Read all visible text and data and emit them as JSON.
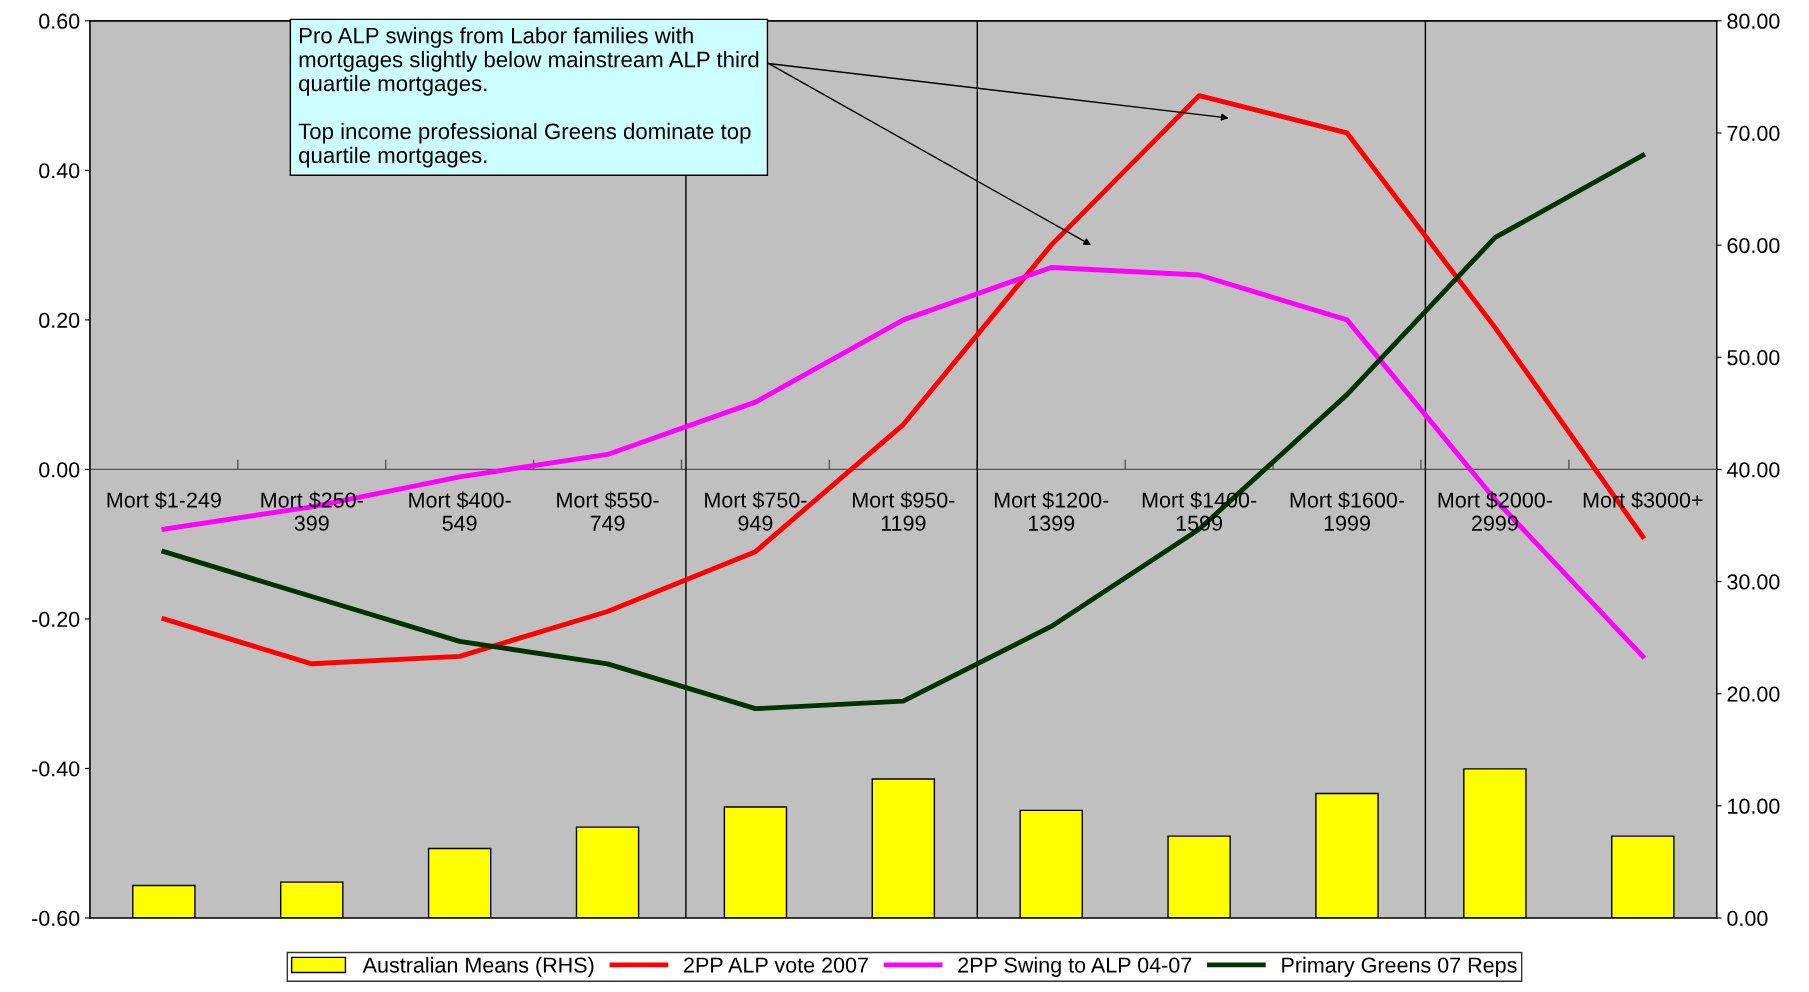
{
  "chart_data": {
    "type": "line",
    "categories": [
      "Mort $1-249",
      "Mort $250-\n399",
      "Mort $400-\n549",
      "Mort $550-\n749",
      "Mort $750-\n949",
      "Mort $950-\n1199",
      "Mort $1200-\n1399",
      "Mort $1400-\n1599",
      "Mort $1600-\n1999",
      "Mort $2000-\n2999",
      "Mort $3000+"
    ],
    "series": [
      {
        "name": "Australian Means (RHS)",
        "type": "bar",
        "axis": "y2",
        "color": "#ffff00",
        "values": [
          2.9,
          3.2,
          6.2,
          8.1,
          9.9,
          12.4,
          9.6,
          7.3,
          11.1,
          13.3,
          7.3
        ]
      },
      {
        "name": "2PP ALP vote 2007",
        "color": "#ff0000",
        "values": [
          -0.2,
          -0.26,
          -0.25,
          -0.19,
          -0.11,
          0.06,
          0.3,
          0.5,
          0.45,
          0.19,
          -0.09
        ]
      },
      {
        "name": "2PP Swing to ALP 04-07",
        "color": "#ff00ff",
        "values": [
          -0.08,
          -0.05,
          -0.01,
          0.02,
          0.09,
          0.2,
          0.27,
          0.26,
          0.2,
          -0.04,
          -0.25
        ]
      },
      {
        "name": "Primary Greens 07 Reps",
        "color": "#003300",
        "values": [
          -0.11,
          -0.17,
          -0.23,
          -0.26,
          -0.32,
          -0.31,
          -0.21,
          -0.08,
          0.1,
          0.31,
          0.42
        ]
      }
    ],
    "ylim": [
      -0.6,
      0.6
    ],
    "yticks": [
      {
        "value": -0.6,
        "label": "-0.60"
      },
      {
        "value": -0.4,
        "label": "-0.40"
      },
      {
        "value": -0.2,
        "label": "-0.20"
      },
      {
        "value": 0,
        "label": "0.00"
      },
      {
        "value": 0.2,
        "label": "0.20"
      },
      {
        "value": 0.4,
        "label": "0.40"
      },
      {
        "value": 0.6,
        "label": "0.60"
      }
    ],
    "y2lim": [
      0,
      80
    ],
    "y2ticks": [
      {
        "value": 0,
        "label": "0.00"
      },
      {
        "value": 10,
        "label": "10.00"
      },
      {
        "value": 20,
        "label": "20.00"
      },
      {
        "value": 30,
        "label": "30.00"
      },
      {
        "value": 40,
        "label": "40.00"
      },
      {
        "value": 50,
        "label": "50.00"
      },
      {
        "value": 60,
        "label": "60.00"
      },
      {
        "value": 70,
        "label": "70.00"
      },
      {
        "value": 80,
        "label": "80.00"
      }
    ],
    "annotations": [
      "Pro ALP swings from Labor families with\nmortgages slightly below mainstream ALP third\nquartile mortgages.\n\nTop income professional Greens dominate top\nquartile mortgages."
    ],
    "grid": false,
    "legend": "bottom",
    "marker": "none",
    "line_style": "solid"
  }
}
